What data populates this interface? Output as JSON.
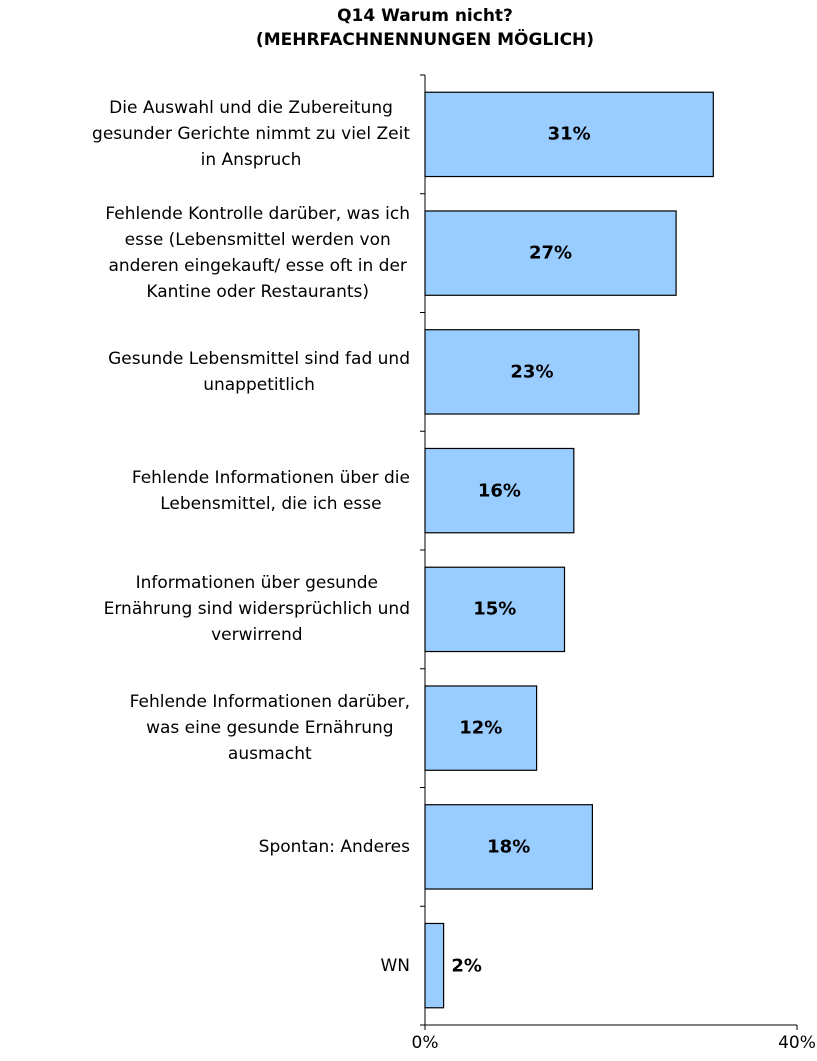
{
  "chart_data": {
    "type": "bar",
    "orientation": "horizontal",
    "title": "Q14 Warum nicht?\n(MEHRFACHNENNUNGEN MÖGLICH)",
    "categories": [
      "Die Auswahl und die Zubereitung\ngesunder Gerichte nimmt zu viel Zeit\nin Anspruch",
      "Fehlende Kontrolle darüber, was ich\nesse (Lebensmittel werden von\nanderen eingekauft/ esse oft in der\nKantine oder Restaurants)",
      "Gesunde Lebensmittel sind fad und\nunappetitlich",
      "Fehlende Informationen über die\nLebensmittel, die ich esse",
      "Informationen über gesunde\nErnährung sind widersprüchlich und\nverwirrend",
      "Fehlende Informationen darüber,\nwas eine gesunde Ernährung\nausmacht",
      "Spontan: Anderes",
      "WN"
    ],
    "values": [
      31,
      27,
      23,
      16,
      15,
      12,
      18,
      2
    ],
    "value_labels": [
      "31%",
      "27%",
      "23%",
      "16%",
      "15%",
      "12%",
      "18%",
      "2%"
    ],
    "color": "#99ccff",
    "xlim": [
      0,
      40
    ],
    "xticks": [
      {
        "value": 0,
        "label": "0%"
      },
      {
        "value": 40,
        "label": "40%"
      }
    ]
  }
}
